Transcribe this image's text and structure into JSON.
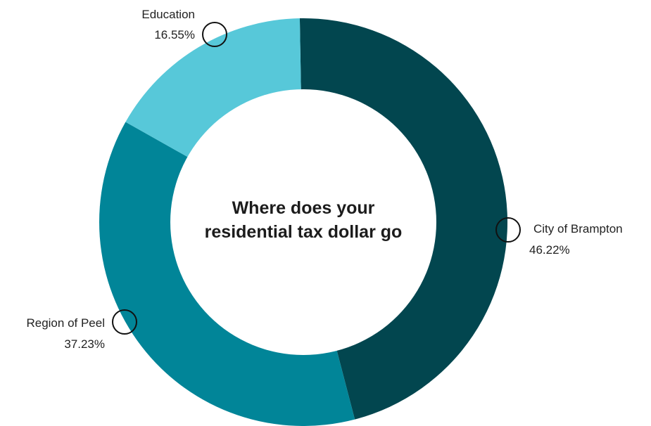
{
  "chart_data": {
    "type": "pie",
    "subtype": "donut",
    "center_title_lines": [
      "Where does your",
      "residential tax dollar go"
    ],
    "slices": [
      {
        "label": "City of Brampton",
        "value": 46.22,
        "value_text": "46.22%",
        "color": "#02464f"
      },
      {
        "label": "Region of Peel",
        "value": 37.23,
        "value_text": "37.23%",
        "color": "#018598"
      },
      {
        "label": "Education",
        "value": 16.55,
        "value_text": "16.55%",
        "color": "#57c8d9"
      }
    ],
    "legend": "none"
  }
}
